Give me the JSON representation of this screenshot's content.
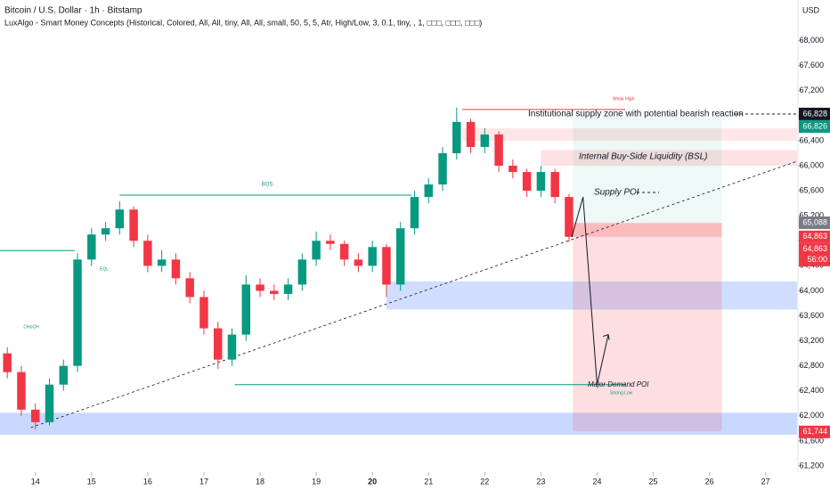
{
  "chart_data": {
    "type": "candlestick",
    "title": "Bitcoin / U.S. Dollar · 1h · Bitstamp",
    "subtitle": "LuxAlgo - Smart Money Concepts (Historical, Colored, All, All, tiny, All, All, small, 50, 5, 5, Atr, High/Low, 3, 0.1, tiny, , 1, □□□, □□□, □□□)",
    "currency": "USD",
    "x": [
      13.5,
      13.75,
      14,
      14.25,
      14.5,
      14.75,
      15,
      15.25,
      15.5,
      15.75,
      16,
      16.25,
      16.5,
      16.75,
      17,
      17.25,
      17.5,
      17.75,
      18,
      18.25,
      18.5,
      18.75,
      19,
      19.25,
      19.5,
      19.75,
      20,
      20.25,
      20.5,
      20.75,
      21,
      21.25,
      21.5,
      21.75,
      22,
      22.25,
      22.5,
      22.75,
      23,
      23.25,
      23.5
    ],
    "open": [
      63000,
      62700,
      62100,
      61900,
      62500,
      62800,
      64500,
      64900,
      65000,
      65300,
      64800,
      64400,
      64500,
      64200,
      63900,
      63400,
      62900,
      63300,
      64100,
      64000,
      63950,
      64100,
      64500,
      64800,
      64750,
      64500,
      64400,
      64700,
      64100,
      65000,
      65500,
      65700,
      66200,
      66700,
      66300,
      66500,
      66000,
      65900,
      65600,
      65900,
      65500
    ],
    "high": [
      63100,
      62800,
      62200,
      62600,
      62900,
      64600,
      65000,
      65100,
      65430,
      65350,
      64900,
      64650,
      64600,
      64300,
      64000,
      63500,
      63400,
      64250,
      64200,
      64100,
      64200,
      64600,
      64950,
      64900,
      64800,
      64600,
      64800,
      64750,
      65100,
      65600,
      65800,
      66300,
      66930,
      66750,
      66600,
      66550,
      66100,
      65950,
      66000,
      65950,
      65550
    ],
    "low": [
      62600,
      62000,
      61780,
      61850,
      62400,
      62700,
      64400,
      64800,
      64900,
      64700,
      64300,
      64300,
      64100,
      63800,
      63300,
      62750,
      62800,
      63200,
      63900,
      63850,
      63850,
      64000,
      64400,
      64650,
      64400,
      64300,
      64300,
      63900,
      64000,
      64900,
      65400,
      65600,
      66100,
      66200,
      66200,
      65900,
      65800,
      65500,
      65500,
      65400,
      64780
    ],
    "close": [
      62700,
      62100,
      61900,
      62500,
      62800,
      64500,
      64900,
      65000,
      65300,
      64800,
      64400,
      64500,
      64200,
      63900,
      63400,
      62900,
      63300,
      64100,
      64000,
      63950,
      64100,
      64500,
      64800,
      64750,
      64500,
      64400,
      64700,
      64100,
      65000,
      65500,
      65700,
      66200,
      66700,
      66300,
      66500,
      66000,
      65900,
      65600,
      65900,
      65500,
      64863
    ],
    "up_color": "#089981",
    "down_color": "#f23645",
    "xlim": [
      13.37,
      27.56
    ],
    "ylim": [
      61100,
      68650
    ],
    "xticks": [
      14,
      15,
      16,
      17,
      18,
      19,
      20,
      21,
      22,
      23,
      24,
      25,
      26,
      27
    ],
    "yticks": [
      {
        "value": 61200,
        "label": "61,200"
      },
      {
        "value": 61600,
        "label": "61,600"
      },
      {
        "value": 62000,
        "label": "62,000"
      },
      {
        "value": 62400,
        "label": "62,400"
      },
      {
        "value": 62800,
        "label": "62,800"
      },
      {
        "value": 63200,
        "label": "63,200"
      },
      {
        "value": 63600,
        "label": "63,600"
      },
      {
        "value": 64000,
        "label": "64,000"
      },
      {
        "value": 64400,
        "label": "64,400"
      },
      {
        "value": 64800,
        "label": "64,800"
      },
      {
        "value": 65200,
        "label": "65,200"
      },
      {
        "value": 65600,
        "label": "65,600"
      },
      {
        "value": 66000,
        "label": "66,000"
      },
      {
        "value": 66400,
        "label": "66,400"
      },
      {
        "value": 66800,
        "label": "66,800"
      },
      {
        "value": 67200,
        "label": "67,200"
      },
      {
        "value": 67600,
        "label": "67,600"
      },
      {
        "value": 68000,
        "label": "68,000"
      }
    ],
    "price_tags": [
      {
        "value": 66828,
        "label": "66,828",
        "color": "#131722"
      },
      {
        "value": 66826,
        "label": "66,826",
        "color": "#089981"
      },
      {
        "value": 65088,
        "label": "65,088",
        "color": "#787b86"
      },
      {
        "value": 64863,
        "label": "64,863",
        "color": "#f23645"
      },
      {
        "value": 64863,
        "label": "64,863",
        "color": "#f23645"
      },
      {
        "value": 61744,
        "label": "61,744",
        "color": "#f23645"
      }
    ],
    "countdown": "56:00",
    "zones": [
      {
        "x": [
          13.37,
          27.56
        ],
        "y": [
          61700,
          62050
        ],
        "color": "rgba(41,98,255,0.25)"
      },
      {
        "x": [
          20.25,
          27.56
        ],
        "y": [
          63700,
          64150
        ],
        "color": "rgba(41,98,255,0.22)"
      },
      {
        "x": [
          21.6,
          27.56
        ],
        "y": [
          66400,
          66600
        ],
        "color": "rgba(242,54,69,0.12)"
      },
      {
        "x": [
          23.0,
          27.56
        ],
        "y": [
          66000,
          66250
        ],
        "color": "rgba(242,54,69,0.15)"
      },
      {
        "x": [
          23.57,
          26.22
        ],
        "y": [
          65070,
          66786
        ],
        "color": "rgba(8,153,129,0.07)"
      },
      {
        "x": [
          23.57,
          26.22
        ],
        "y": [
          61757,
          65070
        ],
        "color": "rgba(242,54,69,0.16)"
      },
      {
        "x": [
          23.57,
          26.22
        ],
        "y": [
          64863,
          65088
        ],
        "color": "rgba(242,54,69,0.22)"
      }
    ],
    "levels": [
      {
        "x": [
          15.5,
          20.7
        ],
        "y": 65530,
        "color": "#089981"
      },
      {
        "x": [
          17.55,
          24.5
        ],
        "y": 62500,
        "color": "#089981"
      },
      {
        "x": [
          21.6,
          24.5
        ],
        "y": 66900,
        "color": "#f23645"
      },
      {
        "x": [
          13.37,
          14.7
        ],
        "y": 64643,
        "color": "#089981"
      }
    ],
    "trendline": {
      "x": [
        13.92,
        27.56
      ],
      "y": [
        61814,
        66071
      ]
    },
    "projection": {
      "x": [
        23.55,
        23.75,
        24.0,
        24.2
      ],
      "y": [
        64863,
        65500,
        62500,
        63300
      ]
    },
    "annotations": [
      "Institutional supply zone with potential bearish reaction",
      "Internal Buy-Side Liquidity (BSL)",
      "Supply POI",
      "Major Demand POI",
      "Strong Low",
      "Weak High",
      "BOS",
      "CHoCH",
      "EQL"
    ]
  }
}
